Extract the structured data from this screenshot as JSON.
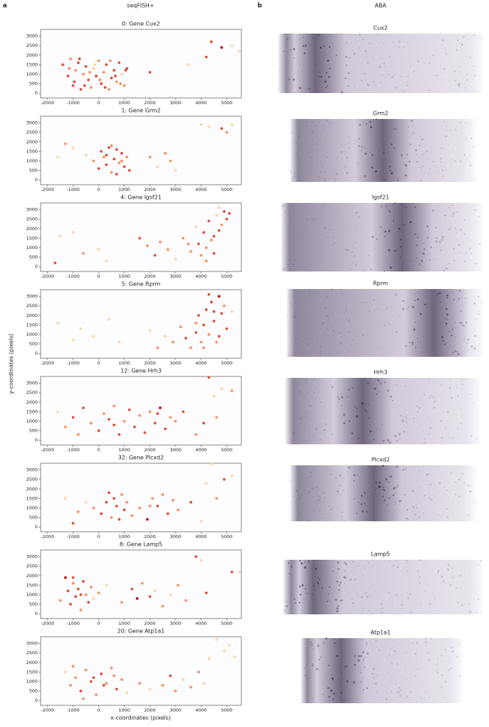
{
  "panel_labels": [
    "a",
    "b"
  ],
  "headers": [
    "seqFISH+",
    "ABA"
  ],
  "y_axis_label": "y-coordinates (pixels)",
  "x_axis_label": "x-coordinates (pixels)",
  "cmap": [
    "#fdd49e",
    "#fc8d59",
    "#e34a33",
    "#b30000"
  ],
  "chart_data": [
    {
      "type": "scatter",
      "title": "0: Gene Cux2",
      "xlim": [
        -2270,
        5570
      ],
      "ylim": [
        -250,
        3350
      ],
      "xticks": [
        -2000,
        -1000,
        0,
        1000,
        2000,
        3000,
        4000,
        5000
      ],
      "yticks": [
        0,
        500,
        1000,
        1500,
        2000,
        2500,
        3000
      ],
      "x": [
        -1400,
        -1200,
        -1100,
        -1000,
        -900,
        -800,
        -700,
        -600,
        -500,
        -400,
        -300,
        -200,
        -100,
        0,
        100,
        200,
        300,
        400,
        500,
        600,
        700,
        800,
        900,
        1000,
        1100,
        -1150,
        -950,
        -750,
        -550,
        -350,
        -150,
        50,
        250,
        450,
        650,
        850,
        1050,
        2000,
        3500,
        4200,
        4400,
        4800,
        5200,
        5500
      ],
      "y": [
        1500,
        900,
        1800,
        400,
        1200,
        1600,
        200,
        1000,
        1400,
        700,
        300,
        1300,
        900,
        1700,
        500,
        1100,
        1500,
        200,
        800,
        1200,
        600,
        1600,
        1000,
        400,
        1300,
        1300,
        600,
        1800,
        400,
        1100,
        1500,
        700,
        300,
        1700,
        900,
        500,
        1200,
        1100,
        1500,
        1900,
        2700,
        2400,
        2500,
        2200
      ],
      "values": [
        3,
        3,
        2,
        3,
        2,
        3,
        3,
        2,
        3,
        3,
        2,
        1,
        3,
        2,
        3,
        2,
        3,
        2,
        3,
        3,
        2,
        3,
        1,
        2,
        3,
        2,
        3,
        3,
        3,
        2,
        1,
        2,
        3,
        2,
        3,
        2,
        3,
        3,
        1,
        3,
        3,
        4,
        1,
        1
      ]
    },
    {
      "type": "scatter",
      "title": "1: Gene Grm2",
      "xlim": [
        -2270,
        5570
      ],
      "ylim": [
        -250,
        3350
      ],
      "xticks": [
        -2000,
        -1000,
        0,
        1000,
        2000,
        3000,
        4000,
        5000
      ],
      "yticks": [
        0,
        500,
        1000,
        1500,
        2000,
        2500,
        3000
      ],
      "x": [
        -1600,
        -1300,
        -1000,
        -500,
        -200,
        0,
        100,
        200,
        300,
        400,
        500,
        600,
        700,
        800,
        900,
        1000,
        1100,
        1200,
        300,
        500,
        700,
        900,
        2000,
        2300,
        2600,
        2800,
        3000,
        4000,
        4300,
        4800,
        5000,
        5200
      ],
      "y": [
        1200,
        1900,
        1700,
        1300,
        1000,
        600,
        1500,
        1200,
        800,
        1700,
        400,
        1100,
        1600,
        900,
        1400,
        700,
        1200,
        500,
        1300,
        1800,
        300,
        1000,
        1200,
        700,
        1400,
        1000,
        500,
        2900,
        2800,
        2700,
        2500,
        2900
      ],
      "values": [
        1,
        2,
        1,
        1,
        2,
        3,
        3,
        2,
        3,
        3,
        2,
        3,
        3,
        2,
        3,
        3,
        2,
        3,
        3,
        2,
        3,
        2,
        2,
        1,
        2,
        2,
        1,
        1,
        1,
        3,
        2,
        1
      ]
    },
    {
      "type": "scatter",
      "title": "4: Gene Igsf21",
      "xlim": [
        -2270,
        5570
      ],
      "ylim": [
        -250,
        3350
      ],
      "xticks": [
        -2000,
        -1000,
        0,
        1000,
        2000,
        3000,
        4000,
        5000
      ],
      "yticks": [
        0,
        500,
        1000,
        1500,
        2000,
        2500,
        3000
      ],
      "x": [
        -1700,
        -1500,
        -1000,
        -600,
        0,
        300,
        1600,
        1900,
        2200,
        2400,
        2700,
        3000,
        3300,
        3600,
        3800,
        3900,
        4000,
        4100,
        4200,
        4300,
        4400,
        4500,
        4600,
        4700,
        4800,
        4900,
        5000,
        5100,
        4200,
        4500,
        4700,
        3500
      ],
      "y": [
        200,
        1600,
        1800,
        700,
        900,
        300,
        1500,
        1100,
        600,
        1300,
        900,
        400,
        1500,
        800,
        2100,
        1200,
        600,
        1800,
        1000,
        2400,
        1400,
        700,
        2700,
        1900,
        2200,
        2900,
        2500,
        2800,
        300,
        1600,
        3100,
        1200
      ],
      "values": [
        3,
        1,
        1,
        2,
        1,
        1,
        3,
        2,
        3,
        2,
        2,
        1,
        2,
        2,
        1,
        3,
        2,
        3,
        2,
        3,
        2,
        3,
        1,
        3,
        2,
        3,
        3,
        3,
        2,
        3,
        1,
        2
      ]
    },
    {
      "type": "scatter",
      "title": "5: Gene Rprm",
      "xlim": [
        -2270,
        5570
      ],
      "ylim": [
        -250,
        3350
      ],
      "xticks": [
        -2000,
        -1000,
        0,
        1000,
        2000,
        3000,
        4000,
        5000
      ],
      "yticks": [
        0,
        500,
        1000,
        1500,
        2000,
        2500,
        3000
      ],
      "x": [
        -1600,
        -1000,
        -700,
        -200,
        400,
        800,
        2000,
        2300,
        2600,
        2900,
        3200,
        3400,
        3600,
        3800,
        3900,
        4000,
        4100,
        4200,
        4300,
        4400,
        4500,
        4600,
        4700,
        4800,
        4900,
        5000,
        4100,
        4500,
        4300,
        4700,
        5200,
        3800
      ],
      "y": [
        1600,
        700,
        1300,
        900,
        1800,
        600,
        1200,
        300,
        900,
        600,
        1400,
        800,
        300,
        1100,
        2000,
        600,
        1500,
        2300,
        1000,
        2700,
        1700,
        600,
        3000,
        2100,
        2500,
        1300,
        300,
        2200,
        3100,
        900,
        2200,
        1600
      ],
      "values": [
        1,
        1,
        1,
        1,
        1,
        1,
        1,
        2,
        1,
        2,
        2,
        3,
        2,
        3,
        3,
        2,
        3,
        3,
        2,
        3,
        3,
        2,
        4,
        3,
        2,
        3,
        2,
        3,
        3,
        3,
        1,
        2
      ]
    },
    {
      "type": "scatter",
      "title": "12: Gene Hrh3",
      "xlim": [
        -2270,
        5570
      ],
      "ylim": [
        -250,
        3350
      ],
      "xticks": [
        -2000,
        -1000,
        0,
        1000,
        2000,
        3000,
        4000,
        5000
      ],
      "yticks": [
        0,
        500,
        1000,
        1500,
        2000,
        2500,
        3000
      ],
      "x": [
        -1600,
        -1300,
        -1000,
        -800,
        -600,
        -300,
        0,
        200,
        400,
        600,
        800,
        1000,
        1200,
        1400,
        1600,
        1800,
        2000,
        2200,
        2400,
        2600,
        2800,
        3000,
        3300,
        3800,
        4100,
        4300,
        4500,
        4600,
        4800,
        5200,
        600,
        2300
      ],
      "y": [
        1500,
        700,
        1200,
        300,
        1700,
        900,
        500,
        1400,
        1100,
        1800,
        300,
        1000,
        1600,
        700,
        1300,
        400,
        1500,
        900,
        1700,
        600,
        1200,
        1000,
        1500,
        300,
        900,
        3300,
        2300,
        1200,
        2700,
        2600,
        800,
        1400
      ],
      "values": [
        1,
        2,
        3,
        2,
        3,
        2,
        3,
        2,
        3,
        2,
        3,
        2,
        3,
        3,
        2,
        3,
        2,
        3,
        4,
        3,
        2,
        2,
        3,
        2,
        3,
        3,
        1,
        2,
        1,
        2,
        3,
        3
      ]
    },
    {
      "type": "scatter",
      "title": "32: Gene Plcxd2",
      "xlim": [
        -2270,
        5570
      ],
      "ylim": [
        -250,
        3350
      ],
      "xticks": [
        -2000,
        -1000,
        0,
        1000,
        2000,
        3000,
        4000,
        5000
      ],
      "yticks": [
        0,
        500,
        1000,
        1500,
        2000,
        2500,
        3000
      ],
      "x": [
        -1300,
        -1000,
        -800,
        -500,
        -200,
        100,
        300,
        400,
        500,
        600,
        700,
        800,
        900,
        1000,
        1100,
        1300,
        1600,
        1900,
        2100,
        2300,
        2500,
        2700,
        2900,
        3100,
        3600,
        4000,
        4200,
        4400,
        4600,
        4900,
        5200,
        2000
      ],
      "y": [
        1500,
        200,
        800,
        1300,
        1000,
        700,
        1300,
        1800,
        500,
        1500,
        1100,
        400,
        1700,
        900,
        1300,
        600,
        1000,
        400,
        1500,
        1100,
        1700,
        700,
        1400,
        900,
        1300,
        300,
        2300,
        3300,
        1500,
        2500,
        2700,
        1100
      ],
      "values": [
        1,
        3,
        2,
        1,
        2,
        3,
        3,
        3,
        2,
        3,
        3,
        3,
        2,
        3,
        2,
        2,
        2,
        4,
        2,
        3,
        2,
        3,
        2,
        2,
        3,
        1,
        1,
        1,
        2,
        3,
        1,
        2
      ]
    },
    {
      "type": "scatter",
      "title": "8: Gene Lamp5",
      "xlim": [
        -2270,
        5570
      ],
      "ylim": [
        -250,
        3350
      ],
      "xticks": [
        -2000,
        -1000,
        0,
        1000,
        2000,
        3000,
        4000,
        5000
      ],
      "yticks": [
        0,
        500,
        1000,
        1500,
        2000,
        2500,
        3000
      ],
      "x": [
        -1500,
        -1300,
        -1200,
        -1100,
        -1000,
        -900,
        -800,
        -700,
        -600,
        -500,
        -400,
        -300,
        -200,
        0,
        300,
        900,
        1300,
        1500,
        1700,
        2000,
        2200,
        2500,
        2800,
        3100,
        3400,
        3800,
        4000,
        4200,
        5200,
        5500,
        -1000,
        -700
      ],
      "y": [
        700,
        1900,
        1200,
        500,
        1600,
        900,
        1300,
        200,
        1700,
        1000,
        600,
        1400,
        800,
        1100,
        1500,
        600,
        1300,
        800,
        1600,
        900,
        1200,
        400,
        1000,
        1500,
        700,
        3000,
        2800,
        1100,
        2200,
        2200,
        1900,
        1000
      ],
      "values": [
        2,
        4,
        3,
        3,
        2,
        3,
        3,
        2,
        3,
        2,
        3,
        2,
        1,
        2,
        1,
        2,
        3,
        4,
        2,
        3,
        1,
        2,
        1,
        2,
        2,
        3,
        1,
        3,
        3,
        1,
        3,
        3
      ]
    },
    {
      "type": "scatter",
      "title": "20: Gene Atp1a1",
      "xlim": [
        -2270,
        5570
      ],
      "ylim": [
        -250,
        3350
      ],
      "xticks": [
        -2000,
        -1000,
        0,
        1000,
        2000,
        3000,
        4000,
        5000
      ],
      "yticks": [
        0,
        500,
        1000,
        1500,
        2000,
        2500,
        3000
      ],
      "x": [
        -1300,
        -1100,
        -900,
        -700,
        -500,
        -300,
        -100,
        100,
        300,
        500,
        700,
        900,
        1100,
        -1000,
        -600,
        -200,
        200,
        600,
        2500,
        2800,
        3000,
        3300,
        3600,
        3900,
        4100,
        4300,
        4600,
        4900,
        5100,
        5300,
        1600,
        2000
      ],
      "y": [
        1500,
        800,
        1200,
        500,
        1600,
        1000,
        300,
        1400,
        900,
        1700,
        600,
        1100,
        400,
        1800,
        100,
        1200,
        800,
        1300,
        800,
        1300,
        500,
        1100,
        700,
        1500,
        900,
        2200,
        3200,
        2600,
        2900,
        2300,
        900,
        600
      ],
      "values": [
        1,
        2,
        2,
        3,
        2,
        3,
        2,
        3,
        2,
        2,
        3,
        2,
        1,
        2,
        2,
        3,
        3,
        2,
        2,
        3,
        2,
        1,
        2,
        2,
        1,
        1,
        1,
        1,
        1,
        1,
        2,
        1
      ]
    }
  ],
  "images": [
    {
      "label": "Cux2"
    },
    {
      "label": "Grm2"
    },
    {
      "label": "Igsf21"
    },
    {
      "label": "Rprm"
    },
    {
      "label": "Hrh3"
    },
    {
      "label": "Plcxd2"
    },
    {
      "label": "Lamp5"
    },
    {
      "label": "Atp1a1"
    }
  ]
}
